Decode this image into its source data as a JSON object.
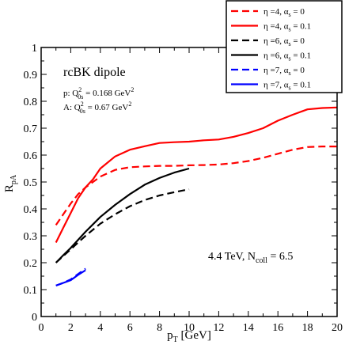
{
  "chart_data": {
    "type": "line",
    "xlabel_main": "p",
    "xlabel_sub": "T",
    "xlabel_unit": " [GeV]",
    "ylabel_main": "R",
    "ylabel_sub": "pA",
    "xlim": [
      0,
      20
    ],
    "ylim": [
      0,
      1
    ],
    "x_ticks": [
      "0",
      "2",
      "4",
      "6",
      "8",
      "10",
      "12",
      "14",
      "16",
      "18",
      "20"
    ],
    "y_ticks": [
      "0",
      "0.1",
      "0.2",
      "0.3",
      "0.4",
      "0.5",
      "0.6",
      "0.7",
      "0.8",
      "0.9",
      "1"
    ],
    "grid": false,
    "legend_position": "top-right",
    "annotations": {
      "model": "rcBK dipole",
      "p_line": {
        "prefix": "p:  Q",
        "sup": "2",
        "sub": "0s",
        "value": " = 0.168 GeV",
        "unit_sup": "2"
      },
      "a_line": {
        "prefix": "A: Q",
        "sup": "2",
        "sub": "0s",
        "value": " = 0.67 GeV",
        "unit_sup": "2"
      },
      "energy": {
        "prefix": "4.4 TeV,  N",
        "sub": "coll",
        "value": " = 6.5"
      }
    },
    "series": [
      {
        "label_eta": "η =4, α",
        "label_alpha": "s",
        "label_value": " = 0",
        "color": "#ff0000",
        "dash": true,
        "x": [
          1,
          1.5,
          2,
          2.5,
          3,
          3.5,
          4,
          5,
          6,
          7,
          8,
          9,
          10,
          11,
          12,
          13,
          14,
          15,
          16,
          17,
          18,
          19,
          20
        ],
        "y": [
          0.34,
          0.38,
          0.42,
          0.455,
          0.48,
          0.5,
          0.52,
          0.545,
          0.555,
          0.558,
          0.56,
          0.56,
          0.562,
          0.563,
          0.565,
          0.57,
          0.578,
          0.59,
          0.605,
          0.62,
          0.63,
          0.632,
          0.632
        ]
      },
      {
        "label_eta": "η =4, α",
        "label_alpha": "s",
        "label_value": " = 0.1",
        "color": "#ff0000",
        "dash": false,
        "x": [
          1,
          1.5,
          2,
          2.5,
          3,
          3.5,
          4,
          5,
          6,
          7,
          8,
          9,
          10,
          11,
          12,
          13,
          14,
          15,
          16,
          17,
          18,
          19,
          20
        ],
        "y": [
          0.275,
          0.33,
          0.385,
          0.44,
          0.48,
          0.51,
          0.55,
          0.595,
          0.62,
          0.633,
          0.645,
          0.648,
          0.65,
          0.655,
          0.658,
          0.668,
          0.682,
          0.7,
          0.728,
          0.75,
          0.77,
          0.775,
          0.777
        ]
      },
      {
        "label_eta": "η =6, α",
        "label_alpha": "s",
        "label_value": " = 0",
        "color": "#000000",
        "dash": true,
        "x": [
          1,
          1.5,
          2,
          3,
          4,
          5,
          6,
          7,
          8,
          9,
          10
        ],
        "y": [
          0.2,
          0.225,
          0.25,
          0.3,
          0.345,
          0.38,
          0.41,
          0.433,
          0.45,
          0.462,
          0.473
        ]
      },
      {
        "label_eta": "η =6, α",
        "label_alpha": "s",
        "label_value": " = 0.1",
        "color": "#000000",
        "dash": false,
        "x": [
          1,
          1.5,
          2,
          3,
          4,
          5,
          6,
          7,
          8,
          9,
          10
        ],
        "y": [
          0.2,
          0.228,
          0.255,
          0.315,
          0.37,
          0.415,
          0.455,
          0.49,
          0.515,
          0.535,
          0.55
        ]
      },
      {
        "label_eta": "η =7, α",
        "label_alpha": "s",
        "label_value": " = 0",
        "color": "#0000ff",
        "dash": true,
        "x": [
          1,
          1.5,
          2,
          2.5,
          3
        ],
        "y": [
          0.115,
          0.125,
          0.138,
          0.158,
          0.178
        ]
      },
      {
        "label_eta": "η =7, α",
        "label_alpha": "s",
        "label_value": " = 0.1",
        "color": "#0000ff",
        "dash": false,
        "x": [
          1,
          1.5,
          2,
          2.5,
          3
        ],
        "y": [
          0.115,
          0.125,
          0.135,
          0.155,
          0.172
        ]
      }
    ]
  }
}
